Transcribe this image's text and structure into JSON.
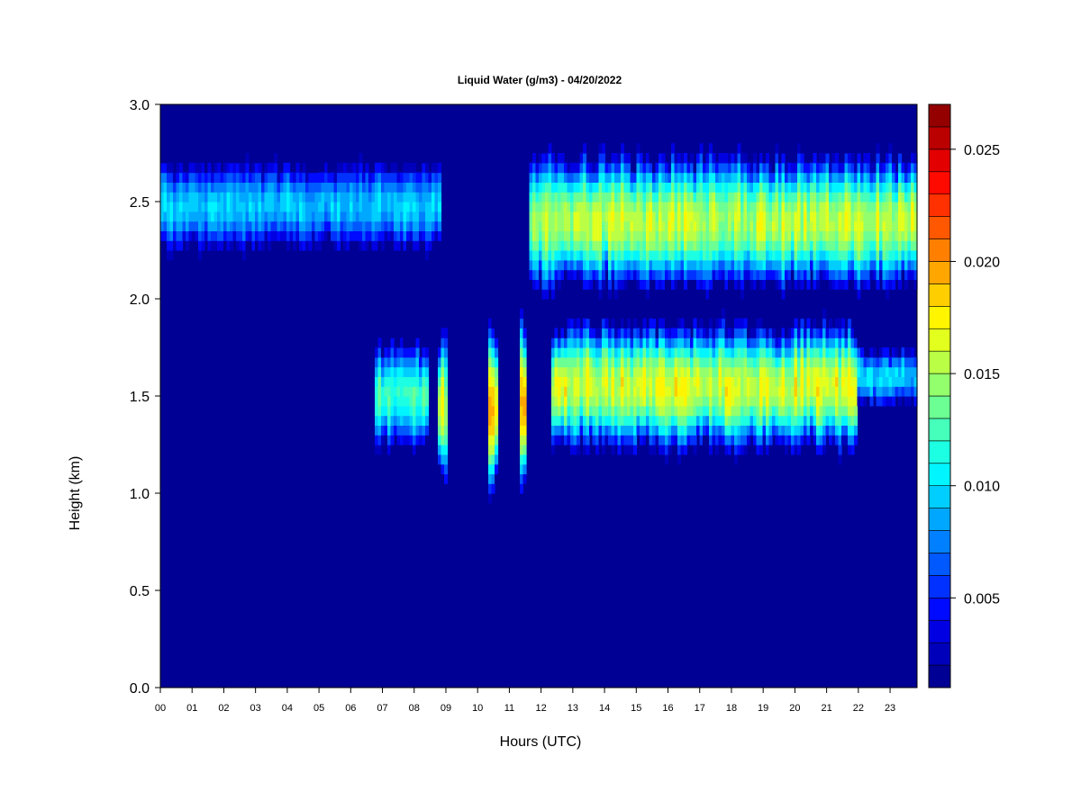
{
  "chart_data": {
    "type": "heatmap",
    "title": "Liquid Water (g/m3) - 04/20/2022",
    "xlabel": "Hours (UTC)",
    "ylabel": "Height (km)",
    "xlim": [
      0,
      23.85
    ],
    "ylim": [
      0,
      3.0
    ],
    "x_ticks": [
      "00",
      "01",
      "02",
      "03",
      "04",
      "05",
      "06",
      "07",
      "08",
      "09",
      "10",
      "11",
      "12",
      "13",
      "14",
      "15",
      "16",
      "17",
      "18",
      "19",
      "20",
      "21",
      "22",
      "23"
    ],
    "y_ticks": [
      "0.0",
      "0.5",
      "1.0",
      "1.5",
      "2.0",
      "2.5",
      "3.0"
    ],
    "colorbar": {
      "range": [
        0.001,
        0.027
      ],
      "levels": 26,
      "tick_values": [
        0.005,
        0.01,
        0.015,
        0.02,
        0.025
      ],
      "tick_labels": [
        "0.005",
        "0.010",
        "0.015",
        "0.020",
        "0.025"
      ]
    },
    "background_value": 0.001,
    "features": [
      {
        "name": "upper layer early",
        "x": [
          0.0,
          8.8
        ],
        "y_center": 2.48,
        "y_halfwidth": 0.22,
        "peak_value": 0.0105
      },
      {
        "name": "upper layer late",
        "x": [
          11.6,
          23.85
        ],
        "y_center": 2.4,
        "y_halfwidth": 0.35,
        "peak_value": 0.0175
      },
      {
        "name": "lower layer early bursts",
        "x": [
          6.8,
          8.4
        ],
        "y_center": 1.5,
        "y_halfwidth": 0.28,
        "peak_value": 0.014
      },
      {
        "name": "burst 09",
        "x": [
          8.75,
          9.05
        ],
        "y_center": 1.45,
        "y_halfwidth": 0.38,
        "peak_value": 0.018
      },
      {
        "name": "burst 10.5",
        "x": [
          10.3,
          10.65
        ],
        "y_center": 1.45,
        "y_halfwidth": 0.45,
        "peak_value": 0.021
      },
      {
        "name": "burst 11.4",
        "x": [
          11.3,
          11.55
        ],
        "y_center": 1.45,
        "y_halfwidth": 0.45,
        "peak_value": 0.022
      },
      {
        "name": "lower layer main",
        "x": [
          12.3,
          22.0
        ],
        "y_center": 1.55,
        "y_halfwidth": 0.33,
        "peak_value": 0.0185
      },
      {
        "name": "lower layer tail",
        "x": [
          22.0,
          23.85
        ],
        "y_center": 1.6,
        "y_halfwidth": 0.15,
        "peak_value": 0.011
      }
    ]
  }
}
